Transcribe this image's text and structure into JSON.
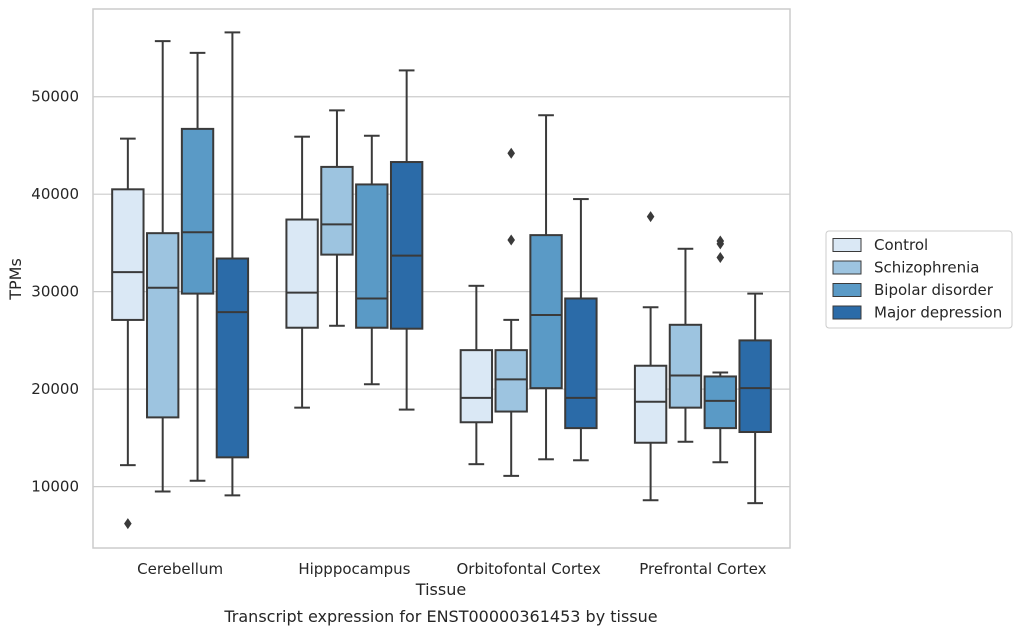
{
  "chart_data": {
    "type": "boxplot",
    "title": "Transcript expression for ENST00000361453 by tissue",
    "xlabel": "Tissue",
    "ylabel": "TPMs",
    "ylim": [
      3700,
      59000
    ],
    "yticks": [
      10000,
      20000,
      30000,
      40000,
      50000
    ],
    "grid": "horizontal",
    "legend_position": "right",
    "categories": [
      "Cerebellum",
      "Hipppocampus",
      "Orbitofontal Cortex",
      "Prefrontal Cortex"
    ],
    "series": [
      {
        "name": "Control",
        "color": "#dae8f5",
        "boxes": [
          {
            "whislo": 12200,
            "q1": 27100,
            "med": 32000,
            "q3": 40500,
            "whishi": 45700,
            "fliers": [
              6200
            ]
          },
          {
            "whislo": 18100,
            "q1": 26300,
            "med": 29900,
            "q3": 37400,
            "whishi": 45900,
            "fliers": []
          },
          {
            "whislo": 12300,
            "q1": 16600,
            "med": 19100,
            "q3": 24000,
            "whishi": 30600,
            "fliers": []
          },
          {
            "whislo": 8600,
            "q1": 14500,
            "med": 18700,
            "q3": 22400,
            "whishi": 28400,
            "fliers": [
              37700
            ]
          }
        ]
      },
      {
        "name": "Schizophrenia",
        "color": "#9dc4e0",
        "boxes": [
          {
            "whislo": 9500,
            "q1": 17100,
            "med": 30400,
            "q3": 36000,
            "whishi": 55700,
            "fliers": []
          },
          {
            "whislo": 26500,
            "q1": 33800,
            "med": 36900,
            "q3": 42800,
            "whishi": 48600,
            "fliers": []
          },
          {
            "whislo": 11100,
            "q1": 17700,
            "med": 21000,
            "q3": 24000,
            "whishi": 27100,
            "fliers": [
              44200,
              35300
            ]
          },
          {
            "whislo": 14600,
            "q1": 18100,
            "med": 21400,
            "q3": 26600,
            "whishi": 34400,
            "fliers": []
          }
        ]
      },
      {
        "name": "Bipolar disorder",
        "color": "#5a9ac6",
        "boxes": [
          {
            "whislo": 10600,
            "q1": 29800,
            "med": 36100,
            "q3": 46700,
            "whishi": 54500,
            "fliers": []
          },
          {
            "whislo": 20500,
            "q1": 26300,
            "med": 29300,
            "q3": 41000,
            "whishi": 46000,
            "fliers": []
          },
          {
            "whislo": 12800,
            "q1": 20100,
            "med": 27600,
            "q3": 35800,
            "whishi": 48100,
            "fliers": []
          },
          {
            "whislo": 12500,
            "q1": 16000,
            "med": 18800,
            "q3": 21300,
            "whishi": 21700,
            "fliers": [
              35200,
              34900,
              33500
            ]
          }
        ]
      },
      {
        "name": "Major depression",
        "color": "#2b6ba8",
        "boxes": [
          {
            "whislo": 9100,
            "q1": 13000,
            "med": 27900,
            "q3": 33400,
            "whishi": 56600,
            "fliers": []
          },
          {
            "whislo": 17900,
            "q1": 26200,
            "med": 33700,
            "q3": 43300,
            "whishi": 52700,
            "fliers": []
          },
          {
            "whislo": 12700,
            "q1": 16000,
            "med": 19100,
            "q3": 29300,
            "whishi": 39500,
            "fliers": []
          },
          {
            "whislo": 8300,
            "q1": 15600,
            "med": 20100,
            "q3": 25000,
            "whishi": 29800,
            "fliers": []
          }
        ]
      }
    ]
  }
}
